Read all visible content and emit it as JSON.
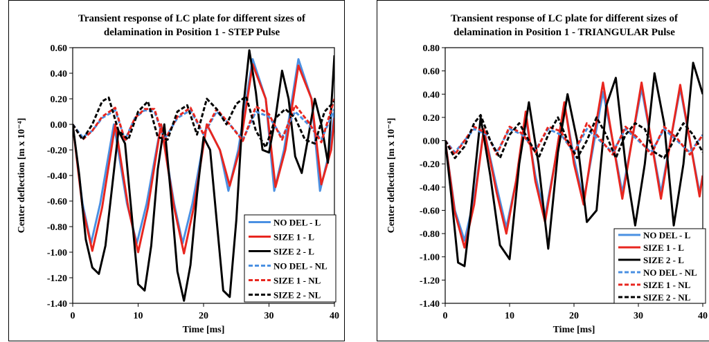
{
  "chart_data": [
    {
      "type": "line",
      "title": "Transient response of LC plate for different sizes of delamination in Position 1 - STEP Pulse",
      "title_lines": [
        "Transient response of LC plate for different sizes of",
        "delamination in Position 1 - STEP Pulse"
      ],
      "xlabel": "Time [ms]",
      "ylabel": "Center deflection [m x 10⁻⁴]",
      "xlim": [
        0,
        40
      ],
      "ylim": [
        -1.4,
        0.6
      ],
      "xticks": [
        0,
        10,
        20,
        30,
        40
      ],
      "xtick_labels": [
        "0",
        "10",
        "20",
        "30",
        "40"
      ],
      "yticks": [
        -1.4,
        -1.2,
        -1.0,
        -0.8,
        -0.6,
        -0.4,
        -0.2,
        0.0,
        0.2,
        0.4,
        0.6
      ],
      "ytick_labels": [
        "-1.40",
        "-1.20",
        "-1.00",
        "-0.80",
        "-0.60",
        "-0.40",
        "-0.20",
        "0.00",
        "0.20",
        "0.40",
        "0.60"
      ],
      "grid": false,
      "legend_position": "bottom-right",
      "series": [
        {
          "name": "NO DEL - L",
          "color": "#4a90e2",
          "style": "solid",
          "x": [
            0,
            1.5,
            2.8,
            4.2,
            6.3,
            8.3,
            9.8,
            11.3,
            13.5,
            15.5,
            16.8,
            18.3,
            20.5,
            22.5,
            23.8,
            25.3,
            27.5,
            29.5,
            30.8,
            32.3,
            34.5,
            36.5,
            37.8,
            39.3,
            40
          ],
          "y": [
            0,
            -0.62,
            -0.93,
            -0.62,
            0,
            -0.62,
            -0.93,
            -0.62,
            0,
            -0.62,
            -0.93,
            -0.62,
            0,
            -0.2,
            -0.52,
            -0.2,
            0.51,
            0.2,
            -0.52,
            -0.2,
            0.51,
            0.2,
            -0.52,
            -0.2,
            0.1
          ]
        },
        {
          "name": "SIZE 1 - L",
          "color": "#e8261f",
          "style": "solid",
          "x": [
            0,
            1.5,
            3,
            4.5,
            6.5,
            8.5,
            10,
            11.5,
            13.5,
            15.5,
            17,
            18.5,
            20.5,
            22.5,
            24,
            25.5,
            27.5,
            29.5,
            31,
            32.5,
            34.5,
            36.5,
            38,
            39.5,
            40
          ],
          "y": [
            0,
            -0.65,
            -0.99,
            -0.65,
            0,
            -0.65,
            -1.0,
            -0.65,
            0,
            -0.65,
            -1.01,
            -0.65,
            0,
            -0.2,
            -0.48,
            -0.2,
            0.47,
            0.2,
            -0.49,
            -0.2,
            0.46,
            0.2,
            -0.47,
            -0.2,
            0.05
          ]
        },
        {
          "name": "SIZE 2 - L",
          "color": "#000000",
          "style": "solid",
          "x": [
            0,
            1,
            2,
            3,
            4,
            5,
            6,
            7,
            8,
            9,
            10,
            11,
            12,
            13,
            14,
            15,
            16,
            17,
            18,
            19,
            20,
            21,
            22,
            23,
            24,
            25,
            26,
            27,
            28,
            29,
            30,
            31,
            32,
            33,
            34,
            35,
            36,
            37,
            38,
            39,
            40
          ],
          "y": [
            0,
            -0.4,
            -0.9,
            -1.12,
            -1.17,
            -0.95,
            -0.5,
            -0.05,
            -0.15,
            -0.7,
            -1.25,
            -1.3,
            -0.95,
            -0.35,
            0.0,
            -0.55,
            -1.15,
            -1.38,
            -1.1,
            -0.55,
            -0.1,
            -0.2,
            -0.75,
            -1.3,
            -1.35,
            -0.75,
            0.1,
            0.58,
            0.25,
            -0.2,
            -0.22,
            0.05,
            0.42,
            0.2,
            -0.25,
            -0.38,
            -0.1,
            0.2,
            0.0,
            -0.3,
            0.54
          ]
        },
        {
          "name": "NO DEL - NL",
          "color": "#4a90e2",
          "style": "dashed",
          "x": [
            0,
            1.5,
            3,
            4.5,
            6.5,
            8,
            9.5,
            11,
            12.5,
            14,
            16,
            18,
            20,
            22,
            24,
            26,
            28,
            30,
            32,
            34,
            36,
            38,
            40
          ],
          "y": [
            0,
            -0.1,
            -0.05,
            0.05,
            0.11,
            -0.12,
            0.05,
            0.11,
            0.1,
            -0.12,
            0.05,
            0.11,
            -0.08,
            0.1,
            0.0,
            -0.12,
            0.1,
            0.06,
            -0.1,
            0.1,
            0.0,
            -0.12,
            0.12
          ]
        },
        {
          "name": "SIZE 1 - NL",
          "color": "#e8261f",
          "style": "dashed",
          "x": [
            0,
            1.5,
            3,
            4.5,
            6.5,
            8,
            9.5,
            11,
            12.5,
            14,
            16,
            18,
            20,
            22,
            24,
            26,
            28,
            30,
            32,
            34,
            36,
            38,
            40
          ],
          "y": [
            0,
            -0.12,
            -0.05,
            0.06,
            0.13,
            -0.13,
            0.05,
            0.12,
            0.12,
            -0.13,
            0.06,
            0.13,
            -0.08,
            0.12,
            0.0,
            -0.13,
            0.14,
            0.08,
            -0.12,
            0.15,
            0.02,
            -0.14,
            0.2
          ]
        },
        {
          "name": "SIZE 2 - NL",
          "color": "#000000",
          "style": "dashed",
          "x": [
            0,
            1.5,
            3,
            4.5,
            5.5,
            7,
            8.5,
            10,
            11.5,
            13,
            14.5,
            16,
            17.5,
            19,
            20.5,
            22,
            23.5,
            25,
            26.5,
            28,
            29.5,
            31,
            32.5,
            34,
            35.5,
            37,
            38.5,
            40
          ],
          "y": [
            0,
            -0.12,
            0.0,
            0.18,
            0.21,
            -0.05,
            -0.12,
            0.1,
            0.18,
            -0.1,
            -0.12,
            0.1,
            0.15,
            -0.08,
            0.2,
            0.12,
            0.0,
            0.16,
            0.22,
            -0.05,
            -0.18,
            0.05,
            0.12,
            0.05,
            -0.12,
            -0.15,
            0.1,
            0.18
          ]
        }
      ]
    },
    {
      "type": "line",
      "title": "Transient response of LC plate for different sizes of delamination in Position 1 - TRIANGULAR Pulse",
      "title_lines": [
        "Transient response of LC plate for different sizes of",
        "delamination in Position 1 - TRIANGULAR Pulse"
      ],
      "xlabel": "Time [ms]",
      "ylabel": "Center deflection [m x 10⁻⁴]",
      "xlim": [
        0,
        40
      ],
      "ylim": [
        -1.4,
        0.8
      ],
      "xticks": [
        0,
        10,
        20,
        30,
        40
      ],
      "xtick_labels": [
        "0",
        "10",
        "20",
        "30",
        "40"
      ],
      "yticks": [
        -1.4,
        -1.2,
        -1.0,
        -0.8,
        -0.6,
        -0.4,
        -0.2,
        0.0,
        0.2,
        0.4,
        0.6,
        0.8
      ],
      "ytick_labels": [
        "-1.40",
        "-1.20",
        "-1.00",
        "-0.80",
        "-0.60",
        "-0.40",
        "-0.20",
        "0.00",
        "0.20",
        "0.40",
        "0.60",
        "0.80"
      ],
      "grid": false,
      "legend_position": "bottom-right",
      "series": [
        {
          "name": "NO DEL - L",
          "color": "#4a90e2",
          "style": "solid",
          "x": [
            0,
            1.5,
            3,
            4.5,
            6,
            8,
            9.5,
            11,
            12.5,
            14,
            15.5,
            17,
            18.5,
            20,
            21.5,
            23,
            24.5,
            26,
            27.5,
            29,
            30.5,
            32,
            33.5,
            35,
            36.5,
            38,
            39.5,
            40
          ],
          "y": [
            0,
            -0.6,
            -0.86,
            -0.5,
            0.1,
            -0.4,
            -0.75,
            -0.35,
            0.2,
            -0.3,
            -0.65,
            -0.2,
            0.32,
            -0.15,
            -0.52,
            -0.05,
            0.42,
            0.0,
            -0.45,
            0.0,
            0.45,
            0.0,
            -0.45,
            0.0,
            0.45,
            0.0,
            -0.45,
            -0.3
          ]
        },
        {
          "name": "SIZE 1 - L",
          "color": "#e8261f",
          "style": "solid",
          "x": [
            0,
            1.5,
            3,
            4.5,
            6,
            8,
            9.5,
            11,
            12.5,
            14,
            15.5,
            17,
            18.5,
            20,
            21.5,
            23,
            24.5,
            26,
            27.5,
            29,
            30.5,
            32,
            33.5,
            35,
            36.5,
            38,
            39.5,
            40
          ],
          "y": [
            0,
            -0.62,
            -0.92,
            -0.55,
            0.1,
            -0.45,
            -0.8,
            -0.35,
            0.25,
            -0.35,
            -0.7,
            -0.2,
            0.33,
            -0.2,
            -0.55,
            0.0,
            0.5,
            0.0,
            -0.5,
            0.0,
            0.5,
            0.0,
            -0.5,
            0.0,
            0.48,
            0.0,
            -0.48,
            -0.3
          ]
        },
        {
          "name": "SIZE 2 - L",
          "color": "#000000",
          "style": "solid",
          "x": [
            0,
            1,
            2,
            3,
            4,
            5.5,
            7,
            8.5,
            10,
            11.5,
            13,
            14.5,
            16,
            17.5,
            19,
            20.5,
            22,
            23.5,
            25,
            26.5,
            28,
            29.5,
            31,
            32.5,
            34,
            35.5,
            37,
            38.5,
            40
          ],
          "y": [
            0,
            -0.5,
            -1.05,
            -1.08,
            -0.6,
            0.2,
            -0.3,
            -0.9,
            -1.02,
            -0.2,
            0.33,
            -0.2,
            -0.93,
            -0.1,
            0.4,
            0.0,
            -0.7,
            -0.6,
            0.3,
            0.54,
            -0.2,
            -0.73,
            -0.2,
            0.58,
            0.15,
            -0.73,
            -0.2,
            0.67,
            0.4
          ]
        },
        {
          "name": "NO DEL - NL",
          "color": "#4a90e2",
          "style": "dashed",
          "x": [
            0,
            1.5,
            3,
            4.5,
            6.5,
            8,
            10,
            12,
            14,
            16,
            18,
            20,
            22,
            24,
            26,
            28,
            30,
            32,
            34,
            36,
            38,
            40
          ],
          "y": [
            0,
            -0.1,
            0.0,
            0.1,
            0.05,
            -0.1,
            0.1,
            0.05,
            -0.08,
            0.1,
            0.05,
            -0.1,
            0.1,
            0.0,
            -0.1,
            0.1,
            0.0,
            -0.1,
            0.1,
            0.0,
            -0.1,
            0.05
          ]
        },
        {
          "name": "SIZE 1 - NL",
          "color": "#e8261f",
          "style": "dashed",
          "x": [
            0,
            1.5,
            3,
            4.5,
            6.5,
            8,
            10,
            12,
            14,
            16,
            18,
            20,
            22,
            24,
            26,
            28,
            30,
            32,
            34,
            36,
            38,
            40
          ],
          "y": [
            0,
            -0.12,
            0.0,
            0.12,
            0.06,
            -0.12,
            0.12,
            0.06,
            -0.1,
            0.12,
            0.08,
            -0.12,
            0.15,
            0.02,
            -0.12,
            0.12,
            0.02,
            -0.12,
            0.12,
            0.02,
            -0.12,
            0.05
          ]
        },
        {
          "name": "SIZE 2 - NL",
          "color": "#000000",
          "style": "dashed",
          "x": [
            0,
            1.5,
            3,
            4.5,
            5.5,
            7,
            8.5,
            10,
            11.5,
            13,
            14.5,
            16,
            17.5,
            19,
            20.5,
            22,
            23.5,
            25,
            26.5,
            28,
            29.5,
            31,
            32.5,
            34,
            35.5,
            37,
            38.5,
            40
          ],
          "y": [
            0,
            -0.15,
            -0.05,
            0.15,
            0.22,
            0.0,
            -0.15,
            0.05,
            0.15,
            0.0,
            -0.15,
            0.05,
            0.2,
            0.0,
            -0.15,
            0.0,
            0.2,
            0.05,
            -0.15,
            0.05,
            0.15,
            0.1,
            -0.1,
            -0.15,
            0.0,
            0.15,
            0.05,
            -0.1
          ]
        }
      ]
    }
  ]
}
